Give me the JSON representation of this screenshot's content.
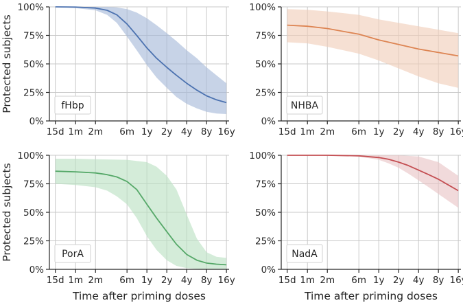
{
  "chart_data": [
    {
      "type": "line",
      "panel": "top-left",
      "label": "fHbp",
      "color": "#4c72b0",
      "band_color": "#a4b8d8",
      "categories": [
        "15d",
        "1m",
        "2m",
        "6m",
        "1y",
        "2y",
        "4y",
        "8y",
        "16y"
      ],
      "x_years": [
        0.0411,
        0.0833,
        0.1667,
        0.5,
        1,
        2,
        4,
        8,
        16
      ],
      "yticks": [
        "0%",
        "25%",
        "50%",
        "75%",
        "100%"
      ],
      "ylim": [
        0,
        100
      ],
      "ylabel": "Protected subjects",
      "xlabel": "",
      "series": [
        {
          "name": "median",
          "x": [
            0.0411,
            0.0833,
            0.1667,
            0.25,
            0.35,
            0.5,
            0.7,
            1,
            1.4,
            2,
            2.8,
            4,
            5.7,
            8,
            11.3,
            16
          ],
          "values": [
            100,
            99.8,
            99,
            97,
            93,
            85,
            75,
            64,
            55,
            47,
            40,
            33,
            27,
            22,
            18.5,
            16
          ]
        },
        {
          "name": "upper",
          "x": [
            0.0411,
            0.0833,
            0.1667,
            0.25,
            0.35,
            0.5,
            0.7,
            1,
            1.4,
            2,
            2.8,
            4,
            5.7,
            8,
            11.3,
            16
          ],
          "values": [
            100,
            100,
            100,
            100,
            99.5,
            98,
            95,
            90,
            84,
            77,
            70,
            62,
            55,
            47,
            40,
            33
          ]
        },
        {
          "name": "lower",
          "x": [
            0.0411,
            0.0833,
            0.1667,
            0.25,
            0.35,
            0.5,
            0.7,
            1,
            1.4,
            2,
            2.8,
            4,
            5.7,
            8,
            11.3,
            16
          ],
          "values": [
            100,
            99,
            97,
            93,
            86,
            74,
            62,
            49,
            38,
            29,
            21,
            15,
            11,
            8,
            6.5,
            6
          ]
        }
      ]
    },
    {
      "type": "line",
      "panel": "top-right",
      "label": "NHBA",
      "color": "#dd8452",
      "band_color": "#f1cdb8",
      "categories": [
        "15d",
        "1m",
        "2m",
        "6m",
        "1y",
        "2y",
        "4y",
        "8y",
        "16y"
      ],
      "x_years": [
        0.0411,
        0.0833,
        0.1667,
        0.5,
        1,
        2,
        4,
        8,
        16
      ],
      "yticks": [
        "0%",
        "25%",
        "50%",
        "75%",
        "100%"
      ],
      "ylim": [
        0,
        100
      ],
      "ylabel": "",
      "xlabel": "",
      "series": [
        {
          "name": "median",
          "x": [
            0.0411,
            0.0833,
            0.1667,
            0.5,
            1,
            2,
            4,
            8,
            16
          ],
          "values": [
            84,
            83,
            81,
            76,
            71,
            67,
            63,
            60,
            57
          ]
        },
        {
          "name": "upper",
          "x": [
            0.0411,
            0.0833,
            0.1667,
            0.5,
            1,
            2,
            4,
            8,
            16
          ],
          "values": [
            98,
            97.5,
            96,
            93,
            89,
            86,
            83,
            80,
            77
          ]
        },
        {
          "name": "lower",
          "x": [
            0.0411,
            0.0833,
            0.1667,
            0.5,
            1,
            2,
            4,
            8,
            16
          ],
          "values": [
            69,
            68,
            65,
            59,
            53,
            46,
            39,
            33,
            29
          ]
        }
      ]
    },
    {
      "type": "line",
      "panel": "bottom-left",
      "label": "PorA",
      "color": "#55a868",
      "band_color": "#b9e0c2",
      "categories": [
        "15d",
        "1m",
        "2m",
        "6m",
        "1y",
        "2y",
        "4y",
        "8y",
        "16y"
      ],
      "x_years": [
        0.0411,
        0.0833,
        0.1667,
        0.5,
        1,
        2,
        4,
        8,
        16
      ],
      "yticks": [
        "0%",
        "25%",
        "50%",
        "75%",
        "100%"
      ],
      "ylim": [
        0,
        100
      ],
      "ylabel": "Protected subjects",
      "xlabel": "Time after priming doses",
      "series": [
        {
          "name": "median",
          "x": [
            0.0411,
            0.0833,
            0.1667,
            0.25,
            0.35,
            0.5,
            0.7,
            1,
            1.4,
            2,
            2.8,
            4,
            5.7,
            8,
            11.3,
            16
          ],
          "values": [
            86,
            85.5,
            84.5,
            83,
            81,
            77,
            70,
            57,
            45,
            33,
            22,
            13,
            8,
            5.5,
            4.5,
            4
          ]
        },
        {
          "name": "upper",
          "x": [
            0.0411,
            0.0833,
            0.1667,
            0.5,
            1,
            1.4,
            2,
            2.8,
            4,
            5.7,
            8,
            11.3,
            16
          ],
          "values": [
            97,
            97,
            96.5,
            96,
            94,
            90,
            82,
            70,
            48,
            27,
            15,
            11,
            10
          ]
        },
        {
          "name": "lower",
          "x": [
            0.0411,
            0.0833,
            0.1667,
            0.25,
            0.35,
            0.5,
            0.7,
            1,
            1.4,
            2,
            2.8,
            4,
            5.7,
            8,
            11.3,
            16
          ],
          "values": [
            75,
            74,
            72,
            69,
            64,
            57,
            45,
            29,
            17,
            8,
            3,
            1,
            0.5,
            0,
            0,
            0
          ]
        }
      ]
    },
    {
      "type": "line",
      "panel": "bottom-right",
      "label": "NadA",
      "color": "#c44e52",
      "band_color": "#e9c4c5",
      "categories": [
        "15d",
        "1m",
        "2m",
        "6m",
        "1y",
        "2y",
        "4y",
        "8y",
        "16y"
      ],
      "x_years": [
        0.0411,
        0.0833,
        0.1667,
        0.5,
        1,
        2,
        4,
        8,
        16
      ],
      "yticks": [
        "0%",
        "25%",
        "50%",
        "75%",
        "100%"
      ],
      "ylim": [
        0,
        100
      ],
      "ylabel": "",
      "xlabel": "Time after priming doses",
      "series": [
        {
          "name": "median",
          "x": [
            0.0411,
            0.0833,
            0.1667,
            0.5,
            1,
            1.4,
            2,
            2.8,
            4,
            5.7,
            8,
            11.3,
            16
          ],
          "values": [
            100,
            100,
            100,
            99.5,
            98,
            96.5,
            94,
            91,
            87,
            83,
            79,
            74,
            69
          ]
        },
        {
          "name": "upper",
          "x": [
            0.0411,
            0.0833,
            0.1667,
            0.5,
            1,
            2,
            4,
            8,
            16
          ],
          "values": [
            100,
            100,
            100,
            100,
            100,
            100,
            99,
            94,
            82
          ]
        },
        {
          "name": "lower",
          "x": [
            0.0411,
            0.0833,
            0.1667,
            0.5,
            1,
            1.4,
            2,
            2.8,
            4,
            5.7,
            8,
            11.3,
            16
          ],
          "values": [
            100,
            100,
            99.5,
            99,
            96,
            93,
            89,
            84,
            78,
            72,
            66,
            60,
            54
          ]
        }
      ]
    }
  ]
}
